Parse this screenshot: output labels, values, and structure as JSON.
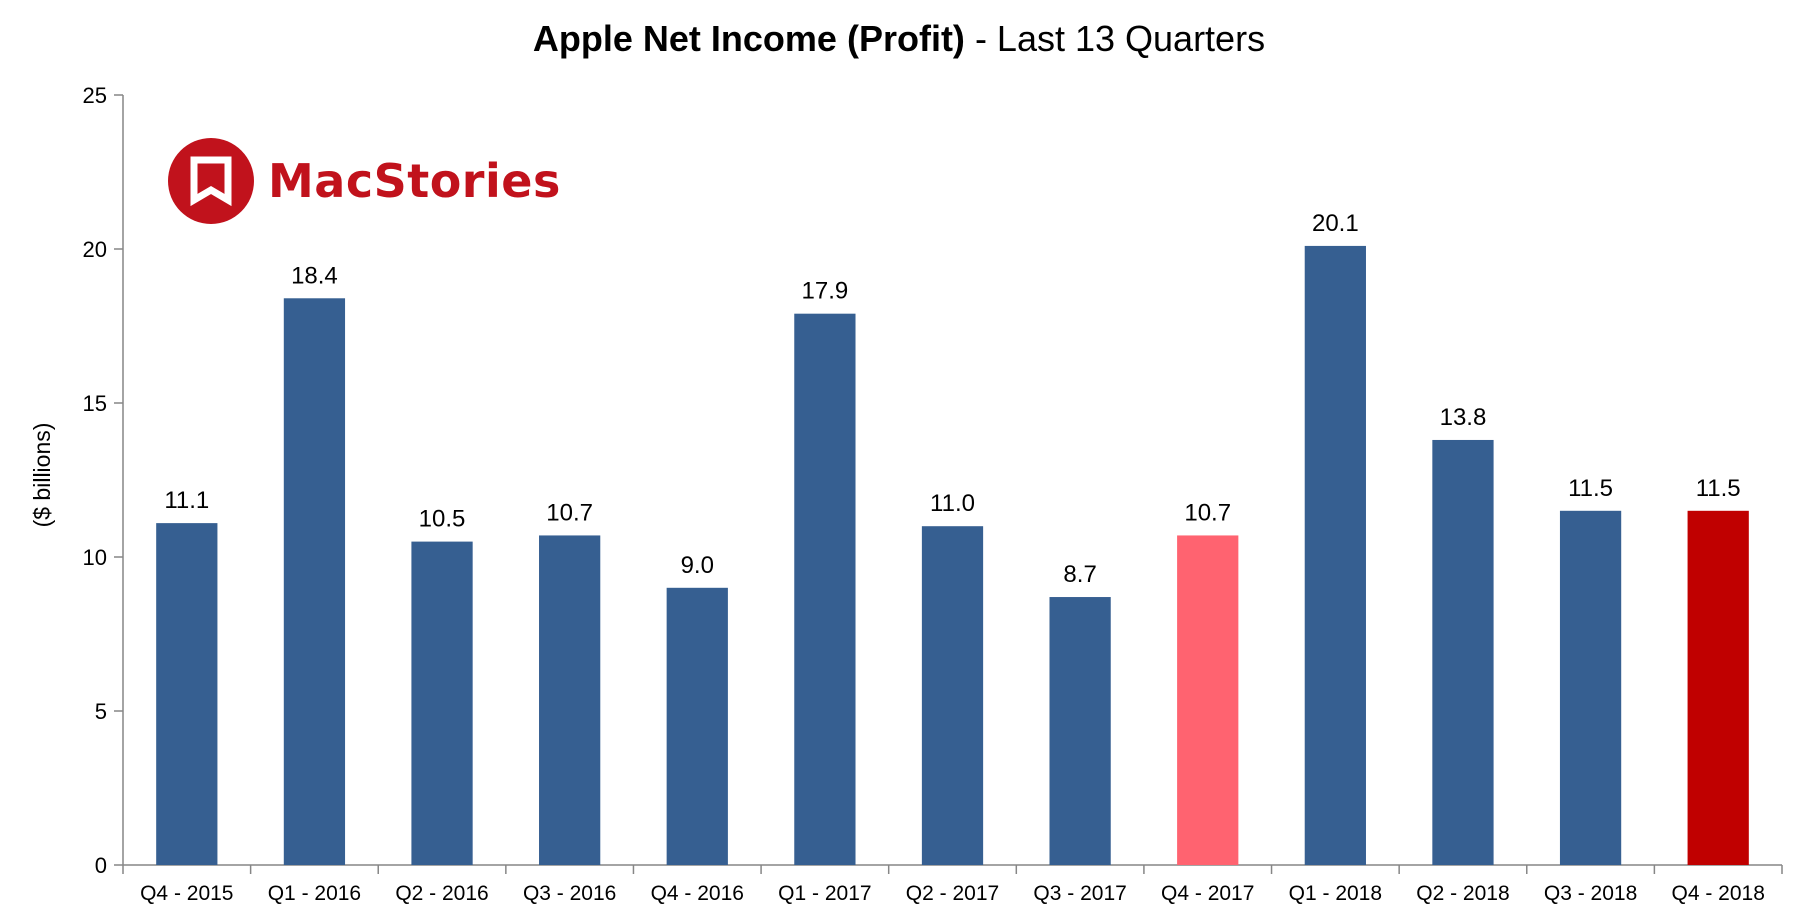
{
  "chart_data": {
    "type": "bar",
    "title_bold": "Apple Net Income (Profit)",
    "title_rest": " - Last 13 Quarters",
    "xlabel": "",
    "ylabel": "($ billions)",
    "ylim": [
      0,
      25
    ],
    "yticks": [
      0,
      5,
      10,
      15,
      20,
      25
    ],
    "grid": false,
    "legend": "none",
    "categories": [
      "Q4 - 2015",
      "Q1 - 2016",
      "Q2 - 2016",
      "Q3 - 2016",
      "Q4 - 2016",
      "Q1 - 2017",
      "Q2 - 2017",
      "Q3 - 2017",
      "Q4 - 2017",
      "Q1 - 2018",
      "Q2 - 2018",
      "Q3 - 2018",
      "Q4 - 2018"
    ],
    "values": [
      11.1,
      18.4,
      10.5,
      10.7,
      9.0,
      17.9,
      11.0,
      8.7,
      10.7,
      20.1,
      13.8,
      11.5,
      11.5
    ],
    "data_labels": [
      "11.1",
      "18.4",
      "10.5",
      "10.7",
      "9.0",
      "17.9",
      "11.0",
      "8.7",
      "10.7",
      "20.1",
      "13.8",
      "11.5",
      "11.5"
    ],
    "bar_colors": [
      "#365f91",
      "#365f91",
      "#365f91",
      "#365f91",
      "#365f91",
      "#365f91",
      "#365f91",
      "#365f91",
      "#ff6370",
      "#365f91",
      "#365f91",
      "#365f91",
      "#c00000"
    ]
  },
  "logo": {
    "text": "MacStories",
    "icon": "bookmark-circle-icon",
    "color": "#c1121c"
  }
}
